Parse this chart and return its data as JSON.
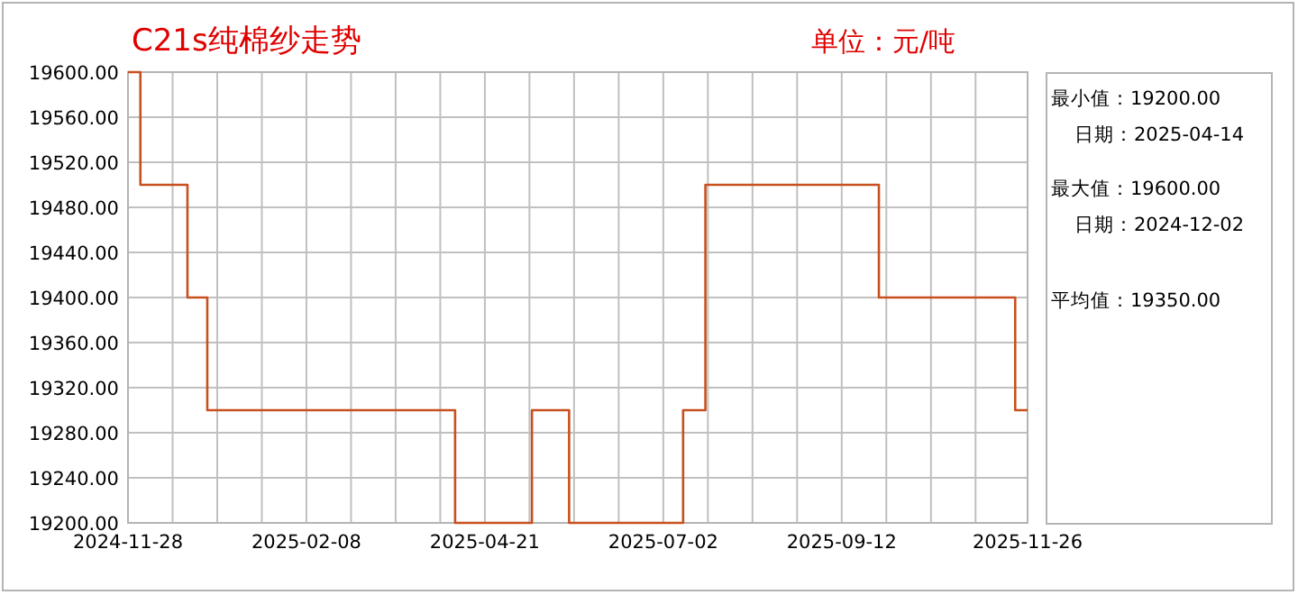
{
  "chart_data": {
    "type": "step",
    "title": "C21s纯棉纱走势",
    "subtitle": "单位：元/吨",
    "annotations": [
      "最小值：19200.00",
      "日期：2025-04-14",
      "最大值：19600.00",
      "日期：2024-12-02",
      "平均值：19350.00"
    ],
    "x": [
      "2024-11-28",
      "2024-12-03",
      "2024-12-22",
      "2024-12-30",
      "2025-04-09",
      "2025-05-10",
      "2025-05-25",
      "2025-07-10",
      "2025-07-19",
      "2025-09-27",
      "2025-11-21",
      "2025-11-26"
    ],
    "series": [
      {
        "color": "#c8501e",
        "values": [
          19600,
          19500,
          19400,
          19300,
          19200,
          19300,
          19200,
          19300,
          19500,
          19400,
          19300,
          19300
        ]
      }
    ],
    "xlim": [
      "2024-11-28",
      "2025-11-26"
    ],
    "xticks": [
      {
        "value": "2024-11-28",
        "label": "2024-11-28"
      },
      {
        "value": "2024-12-16",
        "label": null
      },
      {
        "value": "2025-01-03",
        "label": null
      },
      {
        "value": "2025-01-21",
        "label": null
      },
      {
        "value": "2025-02-08",
        "label": "2025-02-08"
      },
      {
        "value": "2025-02-26",
        "label": null
      },
      {
        "value": "2025-03-16",
        "label": null
      },
      {
        "value": "2025-04-03",
        "label": null
      },
      {
        "value": "2025-04-21",
        "label": "2025-04-21"
      },
      {
        "value": "2025-05-09",
        "label": null
      },
      {
        "value": "2025-05-27",
        "label": null
      },
      {
        "value": "2025-06-14",
        "label": null
      },
      {
        "value": "2025-07-02",
        "label": "2025-07-02"
      },
      {
        "value": "2025-07-20",
        "label": null
      },
      {
        "value": "2025-08-07",
        "label": null
      },
      {
        "value": "2025-08-25",
        "label": null
      },
      {
        "value": "2025-09-12",
        "label": "2025-09-12"
      },
      {
        "value": "2025-09-30",
        "label": null
      },
      {
        "value": "2025-10-18",
        "label": null
      },
      {
        "value": "2025-11-05",
        "label": null
      },
      {
        "value": "2025-11-26",
        "label": "2025-11-26"
      }
    ],
    "ylim": [
      19200,
      19600
    ],
    "yticks": [
      {
        "value": 19200,
        "label": "19200.00"
      },
      {
        "value": 19240,
        "label": "19240.00"
      },
      {
        "value": 19280,
        "label": "19280.00"
      },
      {
        "value": 19320,
        "label": "19320.00"
      },
      {
        "value": 19360,
        "label": "19360.00"
      },
      {
        "value": 19400,
        "label": "19400.00"
      },
      {
        "value": 19440,
        "label": "19440.00"
      },
      {
        "value": 19480,
        "label": "19480.00"
      },
      {
        "value": 19520,
        "label": "19520.00"
      },
      {
        "value": 19560,
        "label": "19560.00"
      },
      {
        "value": 19600,
        "label": "19600.00"
      }
    ],
    "grid": true
  }
}
